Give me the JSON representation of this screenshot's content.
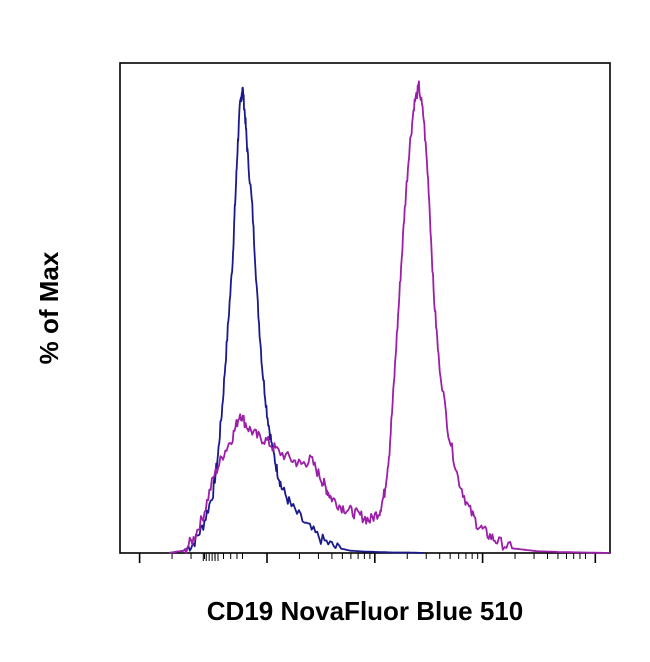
{
  "chart_data": {
    "type": "line",
    "title": "",
    "xlabel": "CD19 NovaFluor Blue 510",
    "ylabel": "% of Max",
    "xscale": "log",
    "xlim": [
      0,
      1
    ],
    "ylim": [
      0,
      1.05
    ],
    "grid": false,
    "legend": "none",
    "series": [
      {
        "color": "#1a1a8c",
        "x": [
          0.1,
          0.13,
          0.15,
          0.17,
          0.19,
          0.2,
          0.21,
          0.22,
          0.23,
          0.235,
          0.24,
          0.245,
          0.25,
          0.255,
          0.26,
          0.27,
          0.28,
          0.29,
          0.3,
          0.31,
          0.32,
          0.33,
          0.35,
          0.38,
          0.41,
          0.44,
          0.47,
          0.5,
          0.53,
          0.56,
          0.59,
          0.62
        ],
        "y": [
          0.0,
          0.005,
          0.02,
          0.06,
          0.13,
          0.21,
          0.33,
          0.48,
          0.63,
          0.75,
          0.87,
          0.96,
          1.0,
          0.94,
          0.86,
          0.74,
          0.55,
          0.4,
          0.3,
          0.23,
          0.18,
          0.14,
          0.1,
          0.06,
          0.03,
          0.012,
          0.005,
          0.003,
          0.002,
          0.001,
          0.001,
          0.0
        ]
      },
      {
        "color": "#9b1fa8",
        "x": [
          0.1,
          0.13,
          0.15,
          0.17,
          0.19,
          0.21,
          0.23,
          0.245,
          0.26,
          0.28,
          0.3,
          0.32,
          0.35,
          0.37,
          0.39,
          0.41,
          0.42,
          0.43,
          0.45,
          0.47,
          0.49,
          0.51,
          0.53,
          0.54,
          0.55,
          0.56,
          0.57,
          0.58,
          0.59,
          0.6,
          0.61,
          0.62,
          0.63,
          0.64,
          0.65,
          0.67,
          0.69,
          0.71,
          0.73,
          0.75,
          0.77,
          0.8,
          0.85,
          0.9,
          0.95,
          1.0
        ],
        "y": [
          0.0,
          0.005,
          0.03,
          0.08,
          0.16,
          0.21,
          0.25,
          0.3,
          0.27,
          0.25,
          0.24,
          0.22,
          0.2,
          0.19,
          0.2,
          0.16,
          0.14,
          0.12,
          0.1,
          0.09,
          0.08,
          0.07,
          0.09,
          0.13,
          0.22,
          0.38,
          0.55,
          0.72,
          0.86,
          0.96,
          1.0,
          0.93,
          0.78,
          0.56,
          0.42,
          0.26,
          0.16,
          0.1,
          0.06,
          0.04,
          0.025,
          0.01,
          0.004,
          0.002,
          0.001,
          0.0
        ]
      }
    ]
  }
}
